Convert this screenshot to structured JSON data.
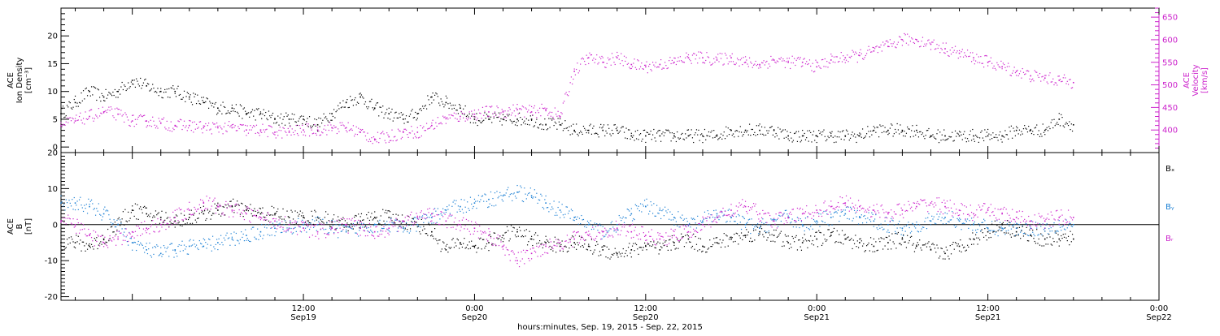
{
  "figure": {
    "xaxis_title": "hours:minutes, Sep. 19, 2015 - Sep. 22, 2015",
    "time_ticks": [
      {
        "hour": 12,
        "line1": "12:00",
        "line2": "Sep19"
      },
      {
        "hour": 24,
        "line1": "0:00",
        "line2": "Sep20"
      },
      {
        "hour": 36,
        "line1": "12:00",
        "line2": "Sep20"
      },
      {
        "hour": 48,
        "line1": "0:00",
        "line2": "Sep21"
      },
      {
        "hour": 60,
        "line1": "12:00",
        "line2": "Sep21"
      },
      {
        "hour": 72,
        "line1": "0:00",
        "line2": "Sep22"
      }
    ],
    "colors": {
      "black": "#000000",
      "blue": "#1a7fd4",
      "magenta": "#cc22cc"
    }
  },
  "chart_data": [
    {
      "type": "scatter",
      "panel": "top",
      "left_ylabel": [
        "ACE",
        "Ion Density",
        "[cm⁻³]"
      ],
      "right_ylabel": [
        "ACE",
        "Velocity",
        "[km/s]"
      ],
      "xlim_hours": [
        -5,
        72
      ],
      "left_ylim": [
        -1,
        25
      ],
      "left_ticks": [
        0,
        5,
        10,
        15,
        20
      ],
      "right_ylim": [
        350,
        670
      ],
      "right_ticks": [
        400,
        450,
        500,
        550,
        600,
        650
      ],
      "series": [
        {
          "axis": "left",
          "color": "#000000",
          "x": [
            -5,
            -4,
            -3,
            -2,
            -1,
            0,
            1,
            2,
            3,
            4,
            5,
            6,
            7,
            8,
            9,
            10,
            11,
            12,
            13,
            14,
            15,
            16,
            17,
            18,
            19,
            20,
            21,
            22,
            23,
            24,
            25,
            26,
            27,
            28,
            29,
            30,
            31,
            32,
            33,
            34,
            35,
            36,
            37,
            38,
            39,
            40,
            41,
            42,
            43,
            44,
            45,
            46,
            47,
            48,
            49,
            50,
            51,
            52,
            53,
            54,
            55,
            56,
            57,
            58,
            59,
            60,
            61,
            62,
            63,
            64,
            65,
            66
          ],
          "y": [
            6,
            8,
            10,
            9,
            10,
            12,
            11,
            10,
            10,
            9,
            8,
            7,
            7,
            6,
            6,
            5,
            5,
            5,
            4,
            6,
            8,
            9,
            7,
            6,
            5,
            6,
            9,
            8,
            7,
            5,
            5,
            5,
            5,
            5,
            4,
            4,
            3,
            3,
            3,
            3,
            2,
            2,
            2,
            2,
            2,
            2,
            2,
            3,
            3,
            3,
            3,
            2,
            2,
            2,
            2,
            2,
            2,
            3,
            3,
            3,
            3,
            2,
            2,
            2,
            2,
            2,
            2,
            3,
            3,
            3,
            5,
            4
          ]
        },
        {
          "axis": "right",
          "color": "#cc22cc",
          "x": [
            -5,
            -4,
            -3,
            -2,
            -1,
            0,
            1,
            2,
            3,
            4,
            5,
            6,
            7,
            8,
            9,
            10,
            11,
            12,
            13,
            14,
            15,
            16,
            17,
            18,
            19,
            20,
            21,
            22,
            23,
            24,
            25,
            26,
            27,
            28,
            29,
            30,
            31,
            32,
            33,
            34,
            35,
            36,
            37,
            38,
            39,
            40,
            41,
            42,
            43,
            44,
            45,
            46,
            47,
            48,
            49,
            50,
            51,
            52,
            53,
            54,
            55,
            56,
            57,
            58,
            59,
            60,
            61,
            62,
            63,
            64,
            65,
            66
          ],
          "y": [
            410,
            420,
            430,
            440,
            435,
            420,
            420,
            415,
            410,
            410,
            405,
            405,
            405,
            400,
            400,
            395,
            395,
            400,
            400,
            405,
            405,
            395,
            380,
            385,
            395,
            395,
            410,
            425,
            430,
            435,
            440,
            440,
            445,
            440,
            445,
            430,
            530,
            560,
            550,
            560,
            545,
            540,
            545,
            550,
            560,
            560,
            555,
            560,
            550,
            545,
            555,
            550,
            550,
            540,
            555,
            560,
            565,
            575,
            585,
            600,
            600,
            590,
            580,
            570,
            560,
            550,
            540,
            530,
            520,
            515,
            510,
            505
          ]
        }
      ]
    },
    {
      "type": "scatter",
      "panel": "bottom",
      "left_ylabel": [
        "ACE",
        "B",
        "[nT]"
      ],
      "xlim_hours": [
        -5,
        72
      ],
      "ylim": [
        -21,
        20
      ],
      "yticks": [
        -20,
        -10,
        0,
        10,
        20
      ],
      "zero_line": true,
      "series": [
        {
          "name": "Bₓ",
          "color": "#000000",
          "x": [
            -5,
            -4,
            -3,
            -2,
            -1,
            0,
            1,
            2,
            3,
            4,
            5,
            6,
            7,
            8,
            9,
            10,
            11,
            12,
            13,
            14,
            15,
            16,
            17,
            18,
            19,
            20,
            21,
            22,
            23,
            24,
            25,
            26,
            27,
            28,
            29,
            30,
            31,
            32,
            33,
            34,
            35,
            36,
            37,
            38,
            39,
            40,
            41,
            42,
            43,
            44,
            45,
            46,
            47,
            48,
            49,
            50,
            51,
            52,
            53,
            54,
            55,
            56,
            57,
            58,
            59,
            60,
            61,
            62,
            63,
            64,
            65,
            66
          ],
          "y": [
            -5,
            -5,
            -6,
            -4,
            0,
            4,
            3,
            2,
            1,
            2,
            3,
            4,
            5,
            4,
            3,
            3,
            2,
            2,
            2,
            1,
            0,
            1,
            2,
            2,
            1,
            0,
            -2,
            -7,
            -5,
            -6,
            -5,
            -3,
            -2,
            -4,
            -5,
            -6,
            -5,
            -6,
            -7,
            -8,
            -7,
            -6,
            -7,
            -5,
            -4,
            -6,
            -5,
            -4,
            -3,
            -2,
            -3,
            -5,
            -5,
            -4,
            -3,
            -4,
            -5,
            -6,
            -5,
            -4,
            -6,
            -7,
            -8,
            -6,
            -4,
            -2,
            0,
            -2,
            -3,
            -4,
            -4,
            -4
          ]
        },
        {
          "name": "Bᵧ",
          "color": "#1a7fd4",
          "x": [
            -5,
            -4,
            -3,
            -2,
            -1,
            0,
            1,
            2,
            3,
            4,
            5,
            6,
            7,
            8,
            9,
            10,
            11,
            12,
            13,
            14,
            15,
            16,
            17,
            18,
            19,
            20,
            21,
            22,
            23,
            24,
            25,
            26,
            27,
            28,
            29,
            30,
            31,
            32,
            33,
            34,
            35,
            36,
            37,
            38,
            39,
            40,
            41,
            42,
            43,
            44,
            45,
            46,
            47,
            48,
            49,
            50,
            51,
            52,
            53,
            54,
            55,
            56,
            57,
            58,
            59,
            60,
            61,
            62,
            63,
            64,
            65,
            66
          ],
          "y": [
            6,
            6,
            5,
            3,
            0,
            -5,
            -7,
            -8,
            -7,
            -6,
            -6,
            -5,
            -4,
            -3,
            -2,
            -1,
            -1,
            0,
            0,
            -1,
            -2,
            -1,
            0,
            0,
            -1,
            0,
            2,
            4,
            5,
            6,
            7,
            8,
            9,
            8,
            6,
            4,
            2,
            0,
            -2,
            0,
            3,
            5,
            4,
            2,
            0,
            1,
            3,
            2,
            0,
            -1,
            1,
            2,
            0,
            1,
            2,
            3,
            2,
            1,
            0,
            -1,
            0,
            1,
            2,
            1,
            0,
            -1,
            -1,
            -1,
            -1,
            -1,
            0,
            0
          ]
        },
        {
          "name": "Bᵣ",
          "color": "#cc22cc",
          "x": [
            -5,
            -4,
            -3,
            -2,
            -1,
            0,
            1,
            2,
            3,
            4,
            5,
            6,
            7,
            8,
            9,
            10,
            11,
            12,
            13,
            14,
            15,
            16,
            17,
            18,
            19,
            20,
            21,
            22,
            23,
            24,
            25,
            26,
            27,
            28,
            29,
            30,
            31,
            32,
            33,
            34,
            35,
            36,
            37,
            38,
            39,
            40,
            41,
            42,
            43,
            44,
            45,
            46,
            47,
            48,
            49,
            50,
            51,
            52,
            53,
            54,
            55,
            56,
            57,
            58,
            59,
            60,
            61,
            62,
            63,
            64,
            65,
            66
          ],
          "y": [
            1,
            0,
            -3,
            -5,
            -4,
            -2,
            -1,
            0,
            2,
            4,
            6,
            5,
            4,
            3,
            2,
            1,
            0,
            -1,
            -2,
            -1,
            0,
            -1,
            -2,
            -1,
            1,
            2,
            3,
            1,
            0,
            -1,
            -3,
            -6,
            -10,
            -8,
            -6,
            -5,
            -4,
            -3,
            -2,
            -1,
            -2,
            -3,
            -4,
            -3,
            -2,
            0,
            2,
            4,
            5,
            3,
            1,
            2,
            3,
            4,
            5,
            6,
            5,
            4,
            3,
            4,
            5,
            6,
            5,
            4,
            3,
            4,
            3,
            2,
            1,
            1,
            2,
            2
          ]
        }
      ]
    }
  ]
}
